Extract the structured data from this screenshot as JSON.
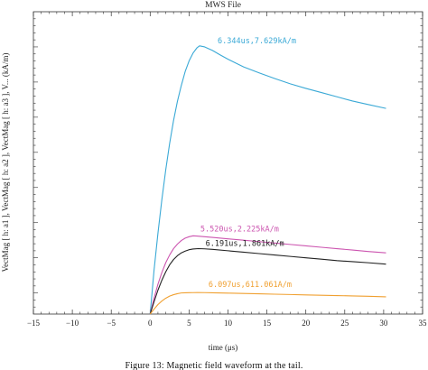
{
  "chart_data": {
    "type": "line",
    "title": "MWS File",
    "xlabel": "time (μs)",
    "ylabel": "VectMag [ h: a1 ], VectMag [ h: a2 ], VectMag [ h: a3 ], V... (kA/m)",
    "xlim": [
      -15,
      35
    ],
    "ylim": [
      0,
      8.6
    ],
    "x_ticks": [
      "−15",
      "−10",
      "−5",
      "0",
      "5",
      "10",
      "15",
      "20",
      "25",
      "30",
      "35"
    ],
    "x_tick_values": [
      -15,
      -10,
      -5,
      0,
      5,
      10,
      15,
      20,
      25,
      30,
      35
    ],
    "y_tick_count": 43,
    "grid": false,
    "series": [
      {
        "color": "#3aa9d6",
        "x": [
          0,
          0.5,
          1,
          1.5,
          2,
          2.5,
          3,
          3.5,
          4,
          4.5,
          5,
          5.5,
          6,
          6.344,
          7,
          8,
          9,
          10,
          12,
          14,
          16,
          18,
          20,
          22,
          24,
          26,
          28,
          30.3
        ],
        "y": [
          0,
          1.25,
          2.3,
          3.25,
          4.1,
          4.85,
          5.5,
          6.05,
          6.5,
          6.9,
          7.2,
          7.42,
          7.57,
          7.629,
          7.6,
          7.5,
          7.37,
          7.25,
          7.03,
          6.86,
          6.7,
          6.55,
          6.42,
          6.3,
          6.18,
          6.06,
          5.96,
          5.85
        ]
      },
      {
        "color": "#cc55b0",
        "x": [
          0,
          0.5,
          1,
          1.5,
          2,
          2.5,
          3,
          3.5,
          4,
          4.5,
          5,
          5.52,
          6,
          7,
          8,
          10,
          12,
          14,
          16,
          18,
          20,
          22,
          24,
          26,
          28,
          30.3
        ],
        "y": [
          0,
          0.45,
          0.85,
          1.18,
          1.46,
          1.68,
          1.86,
          1.99,
          2.09,
          2.16,
          2.2,
          2.225,
          2.22,
          2.2,
          2.18,
          2.14,
          2.1,
          2.06,
          2.02,
          1.98,
          1.94,
          1.9,
          1.86,
          1.82,
          1.78,
          1.74
        ]
      },
      {
        "color": "#222222",
        "x": [
          0,
          0.5,
          1,
          1.5,
          2,
          2.5,
          3,
          3.5,
          4,
          4.5,
          5,
          5.5,
          6.191,
          7,
          8,
          10,
          12,
          14,
          16,
          18,
          20,
          22,
          24,
          26,
          28,
          30.3
        ],
        "y": [
          0,
          0.35,
          0.68,
          0.96,
          1.2,
          1.4,
          1.55,
          1.66,
          1.74,
          1.79,
          1.83,
          1.85,
          1.861,
          1.855,
          1.84,
          1.8,
          1.76,
          1.72,
          1.68,
          1.64,
          1.6,
          1.56,
          1.52,
          1.49,
          1.46,
          1.42
        ]
      },
      {
        "color": "#f0a030",
        "x": [
          0,
          0.5,
          1,
          1.5,
          2,
          2.5,
          3,
          3.5,
          4,
          4.5,
          5,
          5.5,
          6.097,
          7,
          8,
          10,
          12,
          14,
          16,
          18,
          20,
          22,
          24,
          26,
          28,
          30.3
        ],
        "y": [
          0,
          0.14,
          0.27,
          0.37,
          0.45,
          0.51,
          0.55,
          0.58,
          0.6,
          0.605,
          0.608,
          0.61,
          0.611,
          0.61,
          0.605,
          0.595,
          0.585,
          0.575,
          0.565,
          0.555,
          0.545,
          0.535,
          0.525,
          0.515,
          0.505,
          0.49
        ]
      }
    ],
    "annotations": [
      {
        "text": "6.344us,7.629kA/m",
        "x": 6.344,
        "y": 7.629,
        "color": "#3aa9d6"
      },
      {
        "text": "5.520us,2.225kA/m",
        "x": 5.52,
        "y": 2.225,
        "color": "#cc55b0"
      },
      {
        "text": "6.191us,1.861kA/m",
        "x": 6.191,
        "y": 1.861,
        "color": "#222222"
      },
      {
        "text": "6.097us,611.061A/m",
        "x": 6.097,
        "y": 0.611,
        "color": "#f0a030"
      }
    ]
  },
  "caption": "Figure 13: Magnetic field waveform at the tail."
}
